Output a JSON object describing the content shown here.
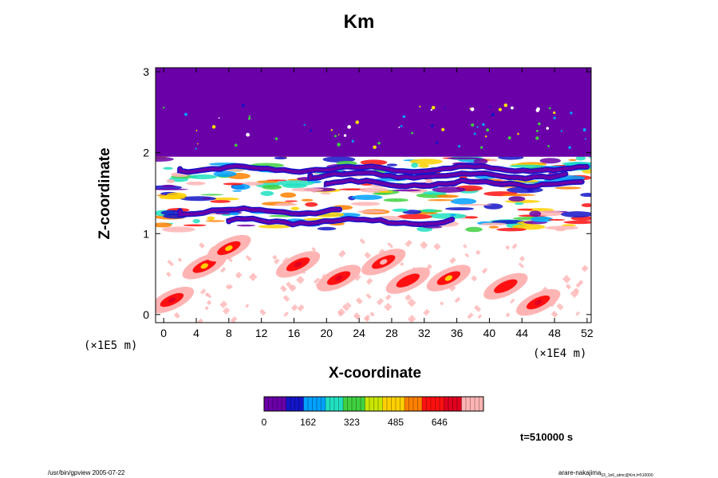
{
  "chart_data": {
    "type": "heatmap",
    "title": "Km",
    "xlabel": "X-coordinate",
    "ylabel": "Z-coordinate",
    "x_scale_label": "(×1E4 m)",
    "y_scale_label": "(×1E5 m)",
    "x_ticks": [
      "0",
      "4",
      "8",
      "12",
      "16",
      "20",
      "24",
      "28",
      "32",
      "36",
      "40",
      "44",
      "48",
      "52"
    ],
    "y_ticks": [
      "0",
      "1",
      "2",
      "3"
    ],
    "xlim": [
      -1,
      52.5
    ],
    "ylim": [
      -0.1,
      3.05
    ],
    "grid": false,
    "colorbar": {
      "tick_labels": [
        "0",
        "162",
        "323",
        "485",
        "646"
      ],
      "range": [
        0,
        808
      ],
      "colors": [
        "#6a00a8",
        "#1414c8",
        "#00a0ff",
        "#20e0c0",
        "#40d040",
        "#c8e600",
        "#ffd000",
        "#ff8000",
        "#ff1010",
        "#e00020",
        "#ffb4b4"
      ]
    },
    "fields": {
      "upper_layer": {
        "z_range": [
          1.95,
          3.05
        ],
        "value": 0,
        "note_color": "#6a00a8"
      },
      "turbulent_layer": {
        "z_range": [
          1.05,
          1.95
        ]
      },
      "lower_layer": {
        "z_range": [
          -0.1,
          1.05
        ]
      }
    },
    "max_bands": [
      {
        "x_range": [
          2,
          52
        ],
        "z": 1.8,
        "value": 0
      },
      {
        "x_range": [
          18,
          50
        ],
        "z": 1.72,
        "value": 0
      },
      {
        "x_range": [
          2,
          22
        ],
        "z": 1.28,
        "value": 0
      },
      {
        "x_range": [
          8,
          36
        ],
        "z": 1.15,
        "value": 0
      },
      {
        "x_range": [
          20,
          52
        ],
        "z": 1.62,
        "value": 0
      }
    ],
    "hotspots": [
      {
        "x": 1,
        "z": 0.18,
        "value": 700
      },
      {
        "x": 5,
        "z": 0.6,
        "value": 500
      },
      {
        "x": 8,
        "z": 0.82,
        "value": 450
      },
      {
        "x": 16.5,
        "z": 0.62,
        "value": 700
      },
      {
        "x": 21.5,
        "z": 0.45,
        "value": 700
      },
      {
        "x": 27,
        "z": 0.65,
        "value": 750
      },
      {
        "x": 30,
        "z": 0.42,
        "value": 600
      },
      {
        "x": 35,
        "z": 0.45,
        "value": 500
      },
      {
        "x": 42,
        "z": 0.35,
        "value": 600
      },
      {
        "x": 46,
        "z": 0.15,
        "value": 700
      }
    ]
  },
  "timestamp": "t=510000 s",
  "footer": {
    "left": "/usr/bin/gpview 2005-07-22",
    "right_main": "arare-nakajima",
    "right_sub": "03_1e6_atmc@Km,t=510000"
  }
}
